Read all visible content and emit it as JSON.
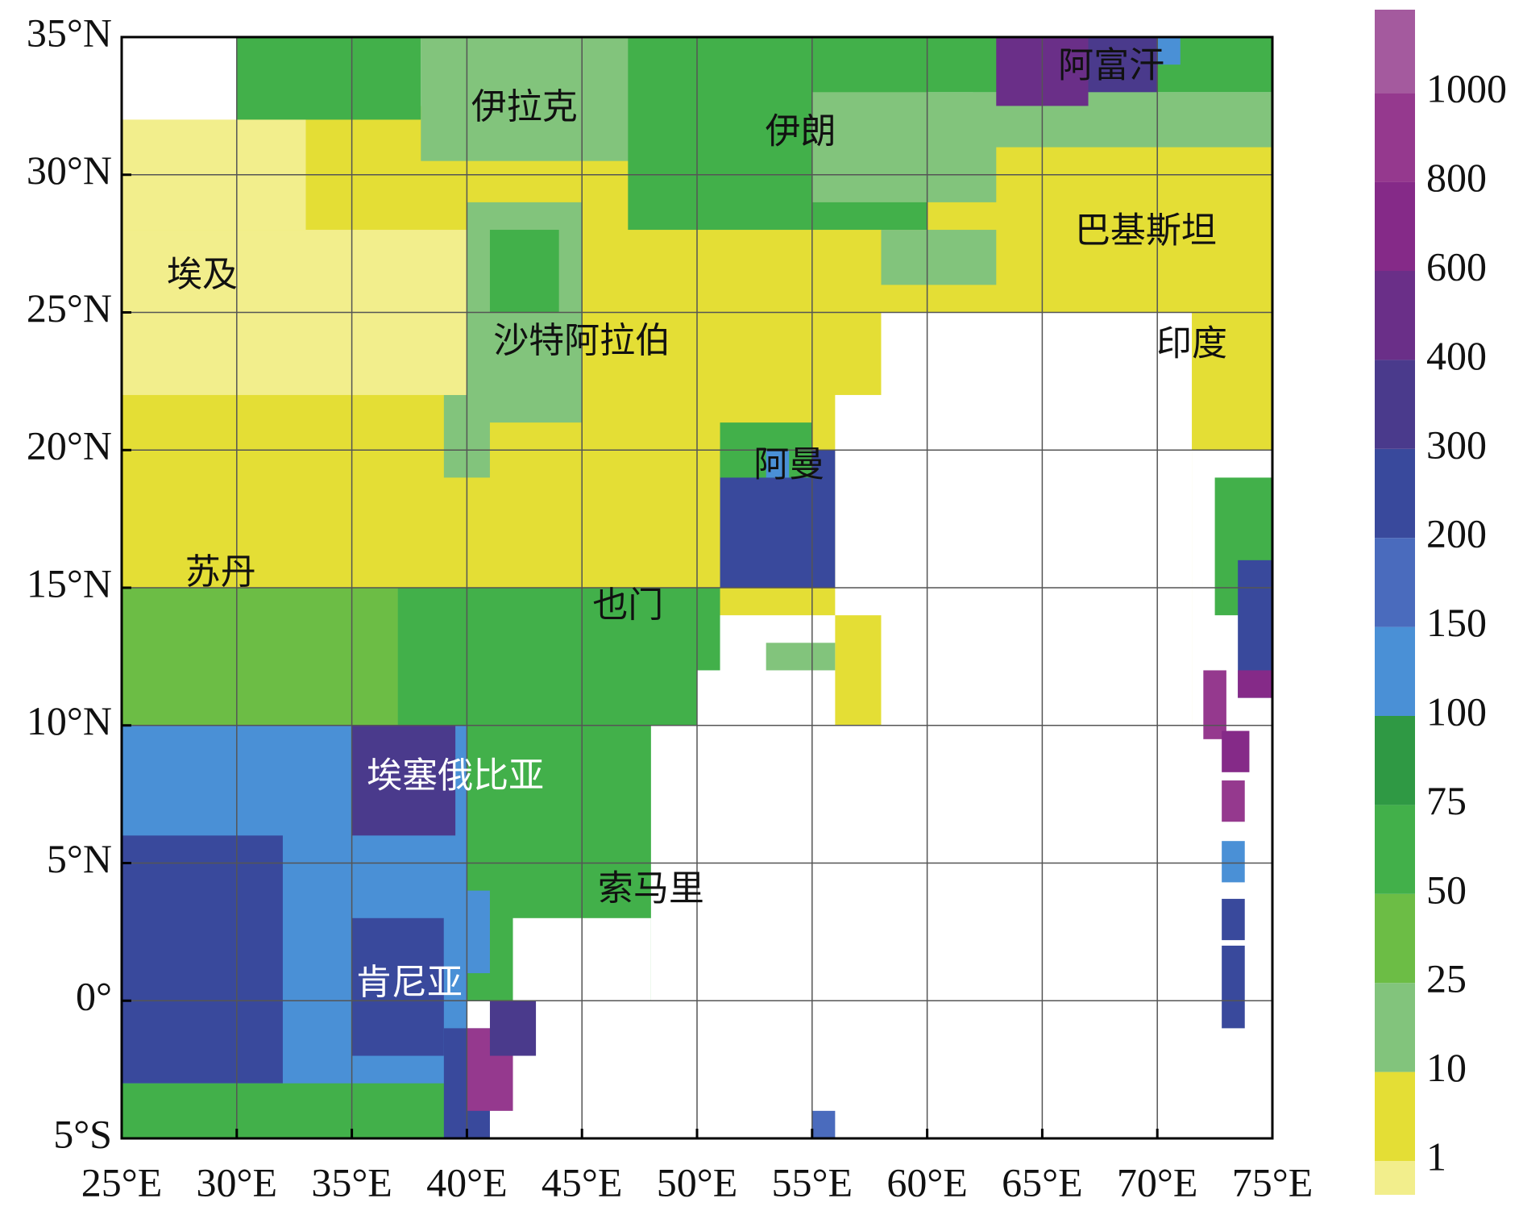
{
  "map": {
    "xlim": [
      25,
      75
    ],
    "ylim": [
      -5,
      35
    ],
    "xticks": [
      {
        "value": 25,
        "label": "25°E"
      },
      {
        "value": 30,
        "label": "30°E"
      },
      {
        "value": 35,
        "label": "35°E"
      },
      {
        "value": 40,
        "label": "40°E"
      },
      {
        "value": 45,
        "label": "45°E"
      },
      {
        "value": 50,
        "label": "50°E"
      },
      {
        "value": 55,
        "label": "55°E"
      },
      {
        "value": 60,
        "label": "60°E"
      },
      {
        "value": 65,
        "label": "65°E"
      },
      {
        "value": 70,
        "label": "70°E"
      },
      {
        "value": 75,
        "label": "75°E"
      }
    ],
    "yticks": [
      {
        "value": 35,
        "label": "35°N"
      },
      {
        "value": 30,
        "label": "30°N"
      },
      {
        "value": 25,
        "label": "25°N"
      },
      {
        "value": 20,
        "label": "20°N"
      },
      {
        "value": 15,
        "label": "15°N"
      },
      {
        "value": 10,
        "label": "10°N"
      },
      {
        "value": 5,
        "label": "5°N"
      },
      {
        "value": 0,
        "label": "0°"
      },
      {
        "value": -5,
        "label": "5°S"
      }
    ],
    "grid": true,
    "labels": [
      "伊拉克",
      "伊朗",
      "阿富汗",
      "巴基斯坦",
      "埃及",
      "沙特阿拉伯",
      "印度",
      "阿曼",
      "苏丹",
      "也门",
      "埃塞俄比亚",
      "索马里",
      "肯尼亚"
    ],
    "colorbar": {
      "ticks": [
        1,
        10,
        25,
        50,
        75,
        100,
        150,
        200,
        300,
        400,
        600,
        800,
        1000
      ],
      "colors": [
        "#f2ee8c",
        "#e4de35",
        "#82c47c",
        "#6cbd45",
        "#42b04a",
        "#2f9944",
        "#4a90d6",
        "#4a6bbd",
        "#39499c",
        "#4a3a8c",
        "#6a2f88",
        "#852a88",
        "#95398e",
        "#a45a9e"
      ]
    }
  }
}
